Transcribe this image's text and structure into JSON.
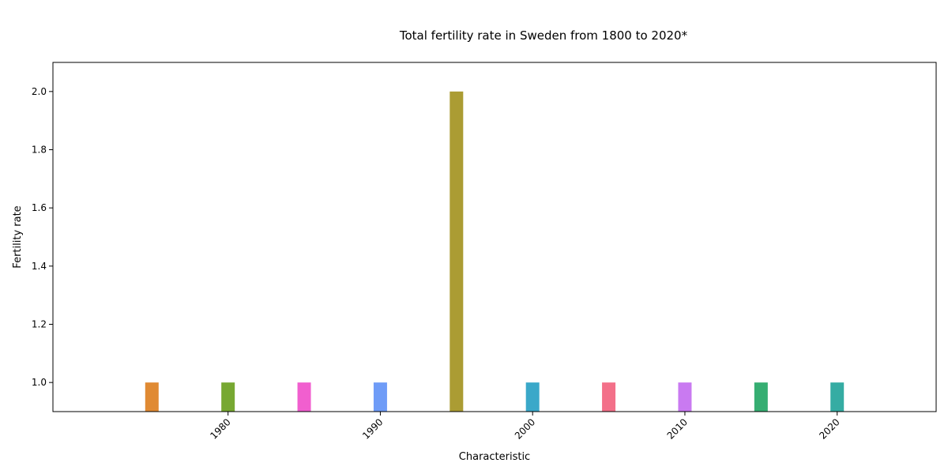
{
  "chart_data": {
    "type": "bar",
    "title": "Total fertility rate in Sweden from 1800 to 2020*",
    "xlabel": "Characteristic",
    "ylabel": "Fertility rate",
    "x": [
      1975,
      1980,
      1985,
      1990,
      1995,
      2000,
      2005,
      2010,
      2015,
      2020
    ],
    "values": [
      1.0,
      1.0,
      1.0,
      1.0,
      2.0,
      1.0,
      1.0,
      1.0,
      1.0,
      1.0
    ],
    "colors": [
      "#e08a33",
      "#77a832",
      "#f15fcf",
      "#6f9cf7",
      "#ab9c33",
      "#3aa8c9",
      "#f37089",
      "#c97af1",
      "#36ae72",
      "#35aca3"
    ],
    "xlim": [
      1968.5,
      2026.5
    ],
    "ylim": [
      0.9,
      2.1
    ],
    "xticks": [
      1980,
      1990,
      2000,
      2010,
      2020
    ],
    "yticks": [
      1.0,
      1.2,
      1.4,
      1.6,
      1.8,
      2.0
    ],
    "grid": false,
    "legend": "none"
  }
}
